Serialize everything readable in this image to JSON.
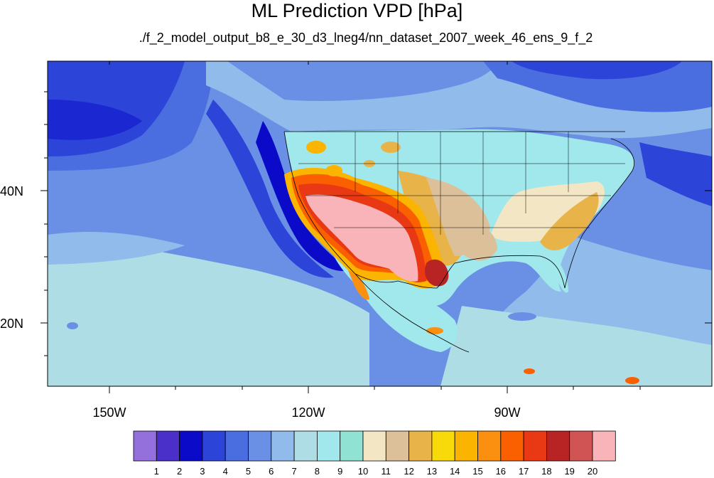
{
  "title": "ML Prediction VPD [hPa]",
  "subtitle": "./f_2_model_output_b8_e_30_d3_lneg4/nn_dataset_2007_week_46_ens_9_f_2",
  "axes": {
    "lat_labels": [
      "40N",
      "20N"
    ],
    "lon_labels": [
      "150W",
      "120W",
      "90W"
    ]
  },
  "colorbar": {
    "labels": [
      "1",
      "2",
      "3",
      "4",
      "5",
      "6",
      "7",
      "8",
      "9",
      "10",
      "11",
      "12",
      "13",
      "14",
      "15",
      "16",
      "17",
      "18",
      "19",
      "20"
    ],
    "colors": [
      "#9370db",
      "#4a2fc8",
      "#0a0ac8",
      "#2c44d8",
      "#4a6de0",
      "#6a90e6",
      "#90bbea",
      "#aedde6",
      "#a0e8ec",
      "#90e2d2",
      "#f2e6c4",
      "#dcc09a",
      "#e8b44a",
      "#f8da0a",
      "#fbb400",
      "#fb9010",
      "#fb6000",
      "#e83814",
      "#b82424",
      "#d05454",
      "#f8b4b8"
    ]
  },
  "chart_data": {
    "type": "heatmap",
    "title": "ML Prediction VPD [hPa]",
    "subtitle": "./f_2_model_output_b8_e_30_d3_lneg4/nn_dataset_2007_week_46_ens_9_f_2",
    "lon_range": [
      -160,
      -62
    ],
    "lat_range": [
      10,
      60
    ],
    "lat_ticks": [
      "40N",
      "20N"
    ],
    "lon_ticks": [
      "150W",
      "120W",
      "90W"
    ],
    "levels": [
      1,
      2,
      3,
      4,
      5,
      6,
      7,
      8,
      9,
      10,
      11,
      12,
      13,
      14,
      15,
      16,
      17,
      18,
      19,
      20
    ],
    "variable": "VPD",
    "units": "hPa"
  }
}
